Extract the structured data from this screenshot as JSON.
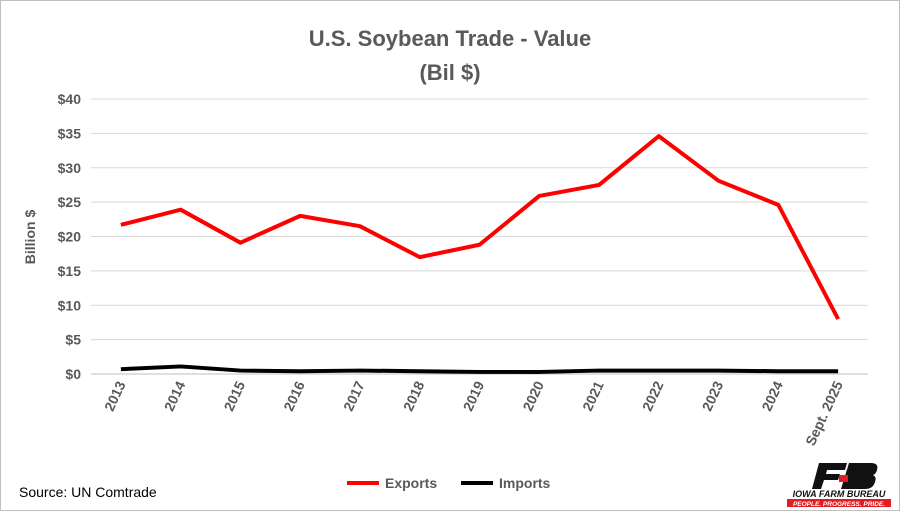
{
  "chart_data": {
    "type": "line",
    "title": "U.S. Soybean Trade - Value",
    "subtitle": "(Bil $)",
    "ylabel": "Billion $",
    "xlabel": "",
    "ylim": [
      0,
      40
    ],
    "yticks": [
      "$0",
      "$5",
      "$10",
      "$15",
      "$20",
      "$25",
      "$30",
      "$35",
      "$40"
    ],
    "ytick_values": [
      0,
      5,
      10,
      15,
      20,
      25,
      30,
      35,
      40
    ],
    "categories": [
      "2013",
      "2014",
      "2015",
      "2016",
      "2017",
      "2018",
      "2019",
      "2020",
      "2021",
      "2022",
      "2023",
      "2024",
      "Sept. 2025"
    ],
    "series": [
      {
        "name": "Exports",
        "color": "#ff0000",
        "values": [
          21.7,
          23.9,
          19.1,
          23.0,
          21.5,
          17.0,
          18.8,
          25.9,
          27.5,
          34.6,
          28.1,
          24.6,
          8.0
        ]
      },
      {
        "name": "Imports",
        "color": "#000000",
        "values": [
          0.7,
          1.1,
          0.5,
          0.4,
          0.5,
          0.4,
          0.3,
          0.3,
          0.5,
          0.5,
          0.5,
          0.4,
          0.4
        ]
      }
    ],
    "grid": true,
    "legend": "bottom-center"
  },
  "source": "Source: UN Comtrade",
  "logo": {
    "name": "IOWA FARM BUREAU",
    "tagline": "PEOPLE. PROGRESS. PRIDE."
  }
}
